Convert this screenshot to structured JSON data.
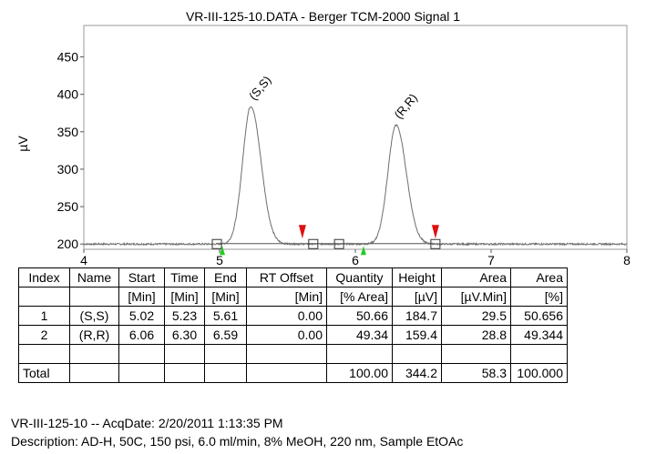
{
  "chart_data": {
    "type": "line",
    "title": "VR-III-125-10.DATA - Berger TCM-2000 Signal 1",
    "xlabel": "",
    "ylabel": "µV",
    "xlim": [
      4,
      8
    ],
    "ylim": [
      193,
      492
    ],
    "x_ticks": [
      "4",
      "5",
      "6",
      "7",
      "8"
    ],
    "y_ticks": [
      "200",
      "250",
      "300",
      "350",
      "400",
      "450"
    ],
    "baseline": 200,
    "series": [
      {
        "peaks": [
          {
            "label": "(S,S)",
            "retention": 5.23,
            "apex": 384,
            "start": 5.02,
            "end": 5.61
          },
          {
            "label": "(R,R)",
            "retention": 6.3,
            "apex": 359,
            "start": 6.06,
            "end": 6.59
          }
        ]
      }
    ],
    "start_markers": [
      5.02,
      6.06
    ],
    "end_markers": [
      5.61,
      6.59
    ],
    "boxes": [
      4.98,
      5.69,
      5.88,
      6.59
    ],
    "colors": {
      "trace": "#6e6e6e",
      "start_marker": "#22cc22",
      "end_marker": "#e01010"
    }
  },
  "table": {
    "headers": [
      "Index",
      "Name",
      "Start",
      "Time",
      "End",
      "RT Offset",
      "Quantity",
      "Height",
      "Area",
      "Area"
    ],
    "units": [
      "",
      "",
      "[Min]",
      "[Min]",
      "[Min]",
      "[Min]",
      "[% Area]",
      "[µV]",
      "[µV.Min]",
      "[%]"
    ],
    "rows": [
      [
        "1",
        "(S,S)",
        "5.02",
        "5.23",
        "5.61",
        "0.00",
        "50.66",
        "184.7",
        "29.5",
        "50.656"
      ],
      [
        "2",
        "(R,R)",
        "6.06",
        "6.30",
        "6.59",
        "0.00",
        "49.34",
        "159.4",
        "28.8",
        "49.344"
      ],
      [
        "",
        "",
        "",
        "",
        "",
        "",
        "",
        "",
        "",
        ""
      ],
      [
        "Total",
        "",
        "",
        "",
        "",
        "",
        "100.00",
        "344.2",
        "58.3",
        "100.000"
      ]
    ]
  },
  "footer": {
    "line1": "VR-III-125-10 -- AcqDate: 2/20/2011 1:13:35 PM",
    "line2": "Description: AD-H, 50C, 150 psi, 6.0 ml/min, 8% MeOH, 220 nm, Sample EtOAc"
  }
}
